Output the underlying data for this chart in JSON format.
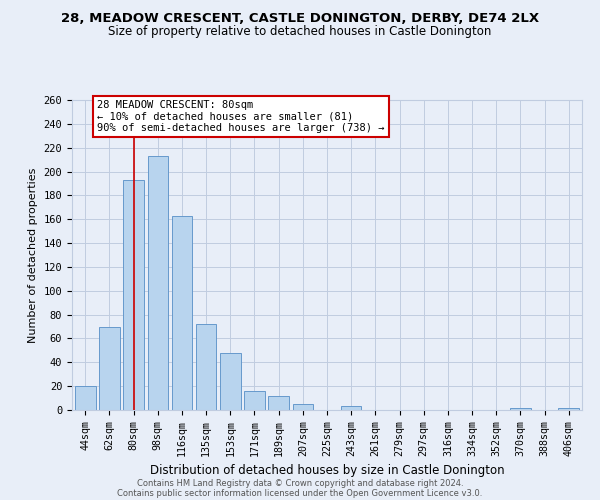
{
  "title1": "28, MEADOW CRESCENT, CASTLE DONINGTON, DERBY, DE74 2LX",
  "title2": "Size of property relative to detached houses in Castle Donington",
  "xlabel": "Distribution of detached houses by size in Castle Donington",
  "ylabel": "Number of detached properties",
  "categories": [
    "44sqm",
    "62sqm",
    "80sqm",
    "98sqm",
    "116sqm",
    "135sqm",
    "153sqm",
    "171sqm",
    "189sqm",
    "207sqm",
    "225sqm",
    "243sqm",
    "261sqm",
    "279sqm",
    "297sqm",
    "316sqm",
    "334sqm",
    "352sqm",
    "370sqm",
    "388sqm",
    "406sqm"
  ],
  "values": [
    20,
    70,
    193,
    213,
    163,
    72,
    48,
    16,
    12,
    5,
    0,
    3,
    0,
    0,
    0,
    0,
    0,
    0,
    2,
    0,
    2
  ],
  "bar_color": "#b8d4ee",
  "bar_edge_color": "#6699cc",
  "highlight_x": "80sqm",
  "highlight_line_color": "#cc0000",
  "annotation_text": "28 MEADOW CRESCENT: 80sqm\n← 10% of detached houses are smaller (81)\n90% of semi-detached houses are larger (738) →",
  "annotation_box_color": "white",
  "annotation_box_edge": "#cc0000",
  "ylim": [
    0,
    260
  ],
  "yticks": [
    0,
    20,
    40,
    60,
    80,
    100,
    120,
    140,
    160,
    180,
    200,
    220,
    240,
    260
  ],
  "footer1": "Contains HM Land Registry data © Crown copyright and database right 2024.",
  "footer2": "Contains public sector information licensed under the Open Government Licence v3.0.",
  "bg_color": "#e8eef8",
  "grid_color": "#c0cce0",
  "title1_fontsize": 9.5,
  "title2_fontsize": 8.5
}
